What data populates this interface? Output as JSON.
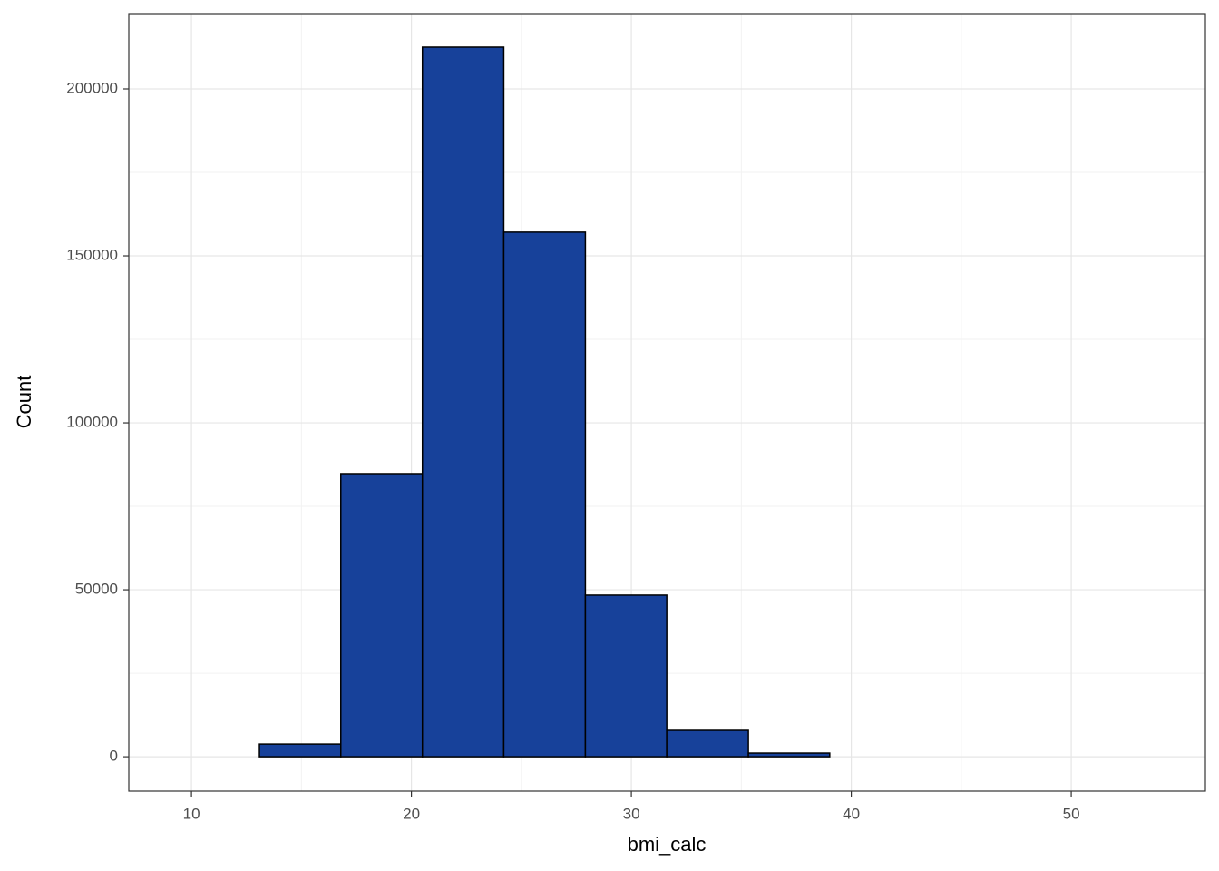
{
  "chart_data": {
    "type": "histogram",
    "x_label": "bmi_calc",
    "y_label": "Count",
    "bins": [
      9.38,
      13.09,
      16.79,
      20.5,
      24.2,
      27.91,
      31.61,
      35.32,
      39.02,
      42.73,
      46.43,
      50.14,
      53.84
    ],
    "values": [
      0,
      3800,
      84800,
      212500,
      157100,
      48400,
      7900,
      1100,
      0,
      0,
      0,
      0
    ],
    "color": "#17419a",
    "edge_color": "#000000",
    "xlim": [
      7.15,
      56.1
    ],
    "xticks": [
      10,
      20,
      30,
      40,
      50
    ],
    "ylim": [
      -10300,
      222550
    ],
    "yticks": [
      0,
      50000,
      100000,
      150000,
      200000
    ],
    "grid": true
  }
}
